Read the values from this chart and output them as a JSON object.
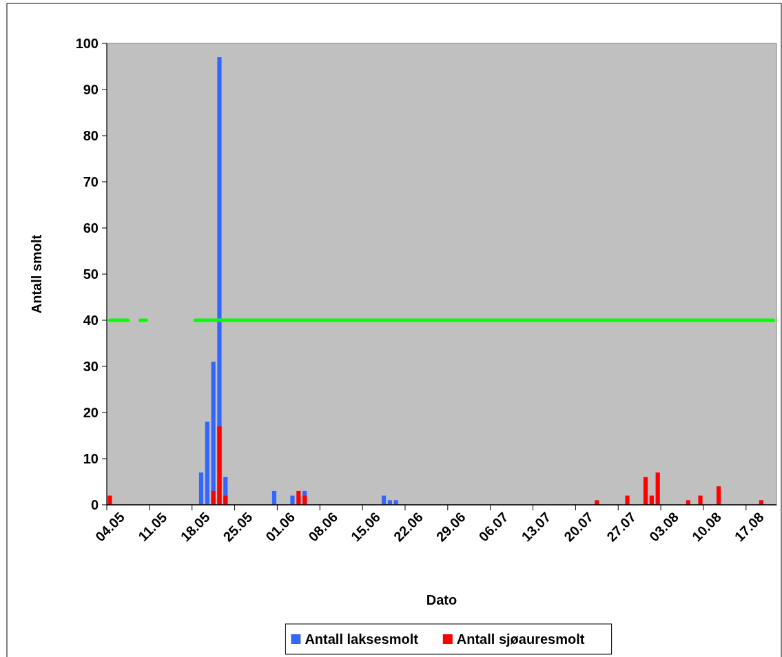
{
  "chart_data": {
    "type": "bar",
    "xlabel": "Dato",
    "ylabel": "Antall smolt",
    "categories": [
      "04.05",
      null,
      null,
      null,
      null,
      null,
      null,
      "11.05",
      null,
      null,
      null,
      null,
      null,
      null,
      "18.05",
      null,
      null,
      null,
      null,
      null,
      null,
      "25.05",
      null,
      null,
      null,
      null,
      null,
      null,
      "01.06",
      null,
      null,
      null,
      null,
      null,
      null,
      "08.06",
      null,
      null,
      null,
      null,
      null,
      null,
      "15.06",
      null,
      null,
      null,
      null,
      null,
      null,
      "22.06",
      null,
      null,
      null,
      null,
      null,
      null,
      "29.06",
      null,
      null,
      null,
      null,
      null,
      null,
      "06.07",
      null,
      null,
      null,
      null,
      null,
      null,
      "13.07",
      null,
      null,
      null,
      null,
      null,
      null,
      "20.07",
      null,
      null,
      null,
      null,
      null,
      null,
      "27.07",
      null,
      null,
      null,
      null,
      null,
      null,
      "03.08",
      null,
      null,
      null,
      null,
      null,
      null,
      "10.08",
      null,
      null,
      null,
      null,
      null,
      null,
      "17.08",
      null,
      null,
      null,
      null
    ],
    "series": [
      {
        "name": "Antall laksesmolt",
        "color": "#3366ff",
        "values": [
          0,
          0,
          0,
          0,
          0,
          0,
          0,
          0,
          0,
          0,
          0,
          0,
          0,
          0,
          0,
          7,
          18,
          31,
          97,
          6,
          0,
          0,
          0,
          0,
          0,
          0,
          0,
          3,
          0,
          0,
          2,
          0,
          3,
          0,
          0,
          0,
          0,
          0,
          0,
          0,
          0,
          0,
          0,
          0,
          0,
          2,
          1,
          1,
          0,
          0,
          0,
          0,
          0,
          0,
          0,
          0,
          0,
          0,
          0,
          0,
          0,
          0,
          0,
          0,
          0,
          0,
          0,
          0,
          0,
          0,
          0,
          0,
          0,
          0,
          0,
          0,
          0,
          0,
          0,
          0,
          0,
          0,
          0,
          0,
          0,
          0,
          0,
          0,
          0,
          0,
          0,
          0,
          0,
          0,
          0,
          0,
          0,
          0,
          0,
          0,
          0,
          0,
          0,
          0,
          0,
          0,
          0,
          0,
          0,
          0
        ]
      },
      {
        "name": "Antall sjøauresmolt",
        "color": "#ff0000",
        "values": [
          2,
          0,
          0,
          0,
          0,
          0,
          0,
          0,
          0,
          0,
          0,
          0,
          0,
          0,
          0,
          0,
          0,
          3,
          17,
          2,
          0,
          0,
          0,
          0,
          0,
          0,
          0,
          0,
          0,
          0,
          0,
          3,
          2,
          0,
          0,
          0,
          0,
          0,
          0,
          0,
          0,
          0,
          0,
          0,
          0,
          0,
          0,
          0,
          0,
          0,
          0,
          0,
          0,
          0,
          0,
          0,
          0,
          0,
          0,
          0,
          0,
          0,
          0,
          0,
          0,
          0,
          0,
          0,
          0,
          0,
          0,
          0,
          0,
          0,
          0,
          0,
          0,
          0,
          0,
          0,
          1,
          0,
          0,
          0,
          0,
          2,
          0,
          0,
          6,
          2,
          7,
          0,
          0,
          0,
          0,
          1,
          0,
          2,
          0,
          0,
          4,
          0,
          0,
          0,
          0,
          0,
          0,
          1,
          0,
          0
        ]
      },
      {
        "type": "line",
        "color": "#00ff00",
        "values": [
          40,
          40,
          40,
          40,
          null,
          40,
          40,
          null,
          null,
          null,
          null,
          null,
          null,
          null,
          40,
          40,
          40,
          40,
          40,
          40,
          40,
          40,
          40,
          40,
          40,
          40,
          40,
          40,
          40,
          40,
          40,
          40,
          40,
          40,
          40,
          40,
          40,
          40,
          40,
          40,
          40,
          40,
          40,
          40,
          40,
          40,
          40,
          40,
          40,
          40,
          40,
          40,
          40,
          40,
          40,
          40,
          40,
          40,
          40,
          40,
          40,
          40,
          40,
          40,
          40,
          40,
          40,
          40,
          40,
          40,
          40,
          40,
          40,
          40,
          40,
          40,
          40,
          40,
          40,
          40,
          40,
          40,
          40,
          40,
          40,
          40,
          40,
          40,
          40,
          40,
          40,
          40,
          40,
          40,
          40,
          40,
          40,
          40,
          40,
          40,
          40,
          40,
          40,
          40,
          40,
          40,
          40,
          40,
          40,
          40
        ]
      }
    ],
    "ylim": [
      0,
      100
    ],
    "yticks": [
      0,
      10,
      20,
      30,
      40,
      50,
      60,
      70,
      80,
      90,
      100
    ],
    "grid": false,
    "legend": "bottom"
  }
}
